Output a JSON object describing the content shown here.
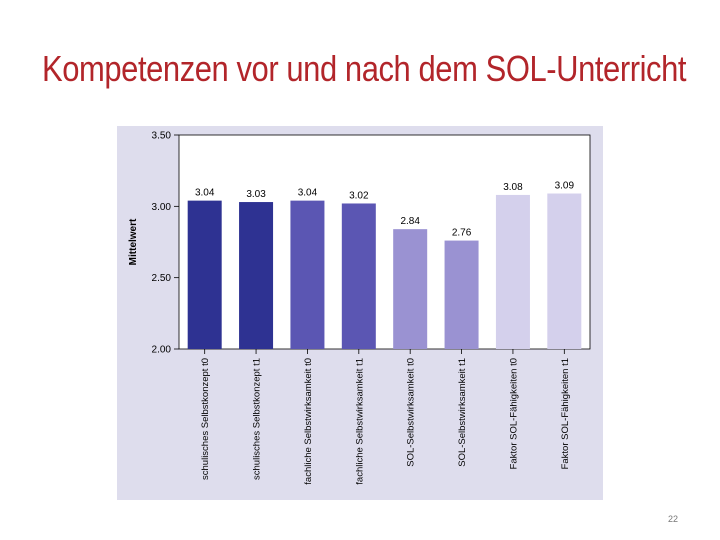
{
  "slide": {
    "title": "Kompetenzen vor und nach dem SOL-Unterricht",
    "page_number": "22"
  },
  "colors": {
    "title": "#b2252a",
    "panel_background": "#dedded",
    "bars": [
      "#2e3292",
      "#2e3292",
      "#5b56b3",
      "#5b56b3",
      "#9a92d2",
      "#9a92d2",
      "#d4d0ec",
      "#d4d0ec"
    ]
  },
  "chart_data": {
    "type": "bar",
    "title": "",
    "xlabel": "",
    "ylabel": "Mittelwert",
    "ylim": [
      2.0,
      3.5
    ],
    "yticks": [
      "2.00",
      "2.50",
      "3.00",
      "3.50"
    ],
    "grid": false,
    "categories": [
      "schulisches Selbstkonzept t0",
      "schulisches Selbstkonzept t1",
      "fachliche Selbstwirksamkeit t0",
      "fachliche Selbstwirksamkeit t1",
      "SOL-Selbstwirksamkeit t0",
      "SOL-Selbstwirksamkeit t1",
      "Faktor SOL-Fähigkeiten t0",
      "Faktor SOL-Fähigkeiten t1"
    ],
    "values": [
      3.04,
      3.03,
      3.04,
      3.02,
      2.84,
      2.76,
      3.08,
      3.09
    ],
    "value_labels": [
      "3.04",
      "3.03",
      "3.04",
      "3.02",
      "2.84",
      "2.76",
      "3.08",
      "3.09"
    ]
  }
}
